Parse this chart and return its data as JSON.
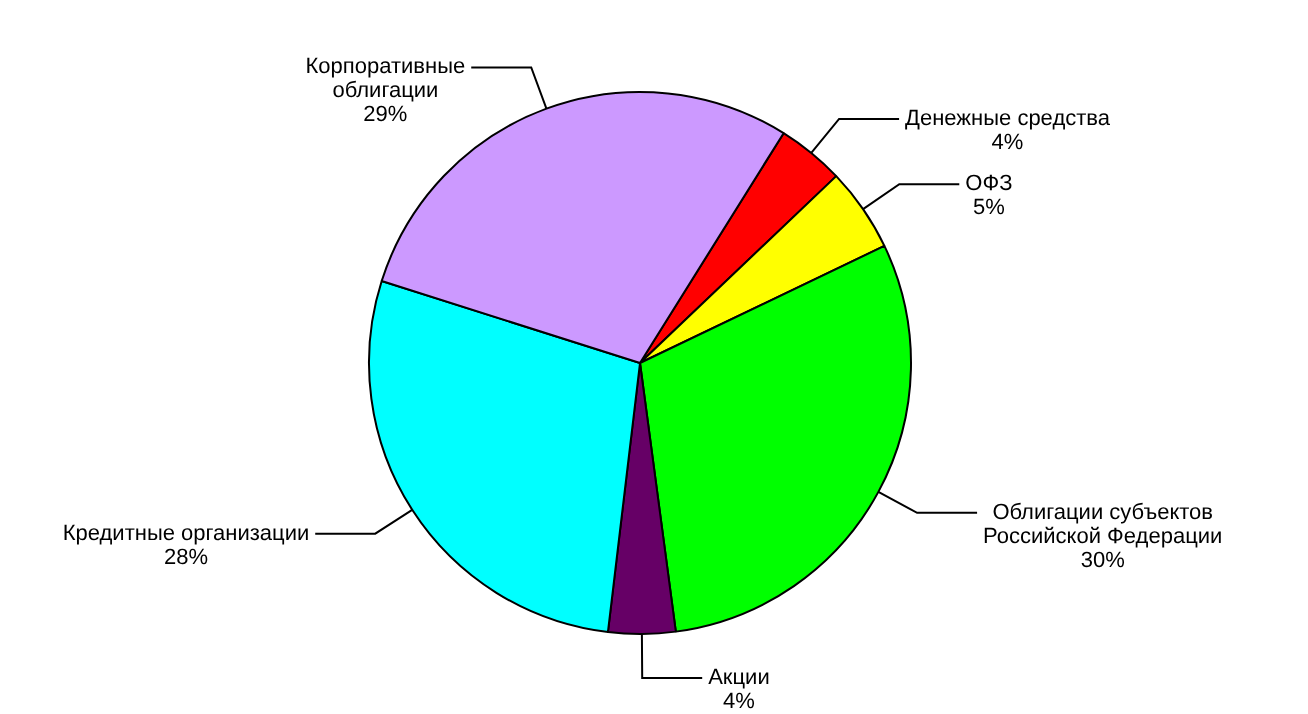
{
  "chart_data": {
    "type": "pie",
    "categories": [
      "Денежные средства",
      "ОФЗ",
      "Облигации субъектов Российской Федерации",
      "Акции",
      "Кредитные организации",
      "Корпоративные облигации"
    ],
    "values": [
      4,
      5,
      30,
      4,
      28,
      29
    ],
    "colors": [
      "#ff0000",
      "#ffff00",
      "#00ff00",
      "#660066",
      "#00ffff",
      "#cc99ff"
    ],
    "value_labels": [
      "4%",
      "5%",
      "30%",
      "4%",
      "28%",
      "29%"
    ],
    "legend": false
  }
}
